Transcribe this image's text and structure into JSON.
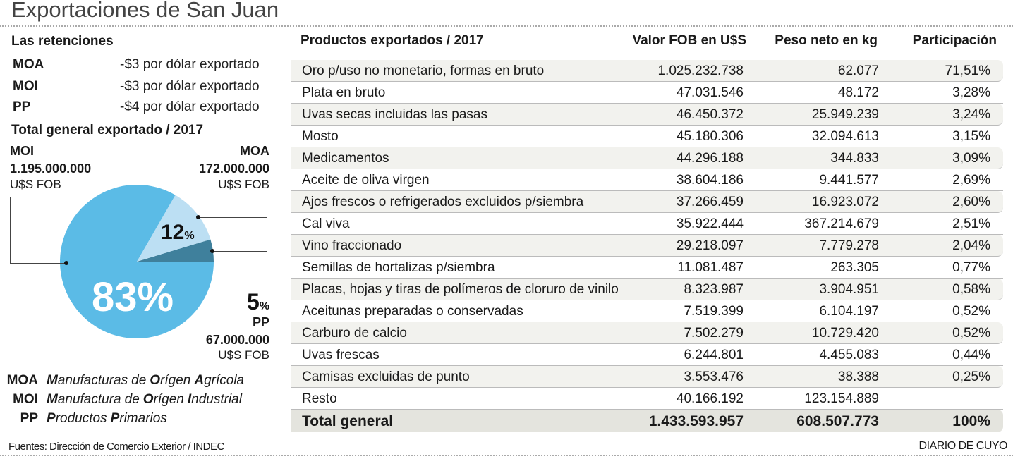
{
  "title": "Exportaciones de San Juan",
  "retenciones": {
    "heading": "Las retenciones",
    "items": [
      {
        "key": "MOA",
        "value": "-$3 por dólar exportado"
      },
      {
        "key": "MOI",
        "value": "-$3 por dólar exportado"
      },
      {
        "key": "PP",
        "value": "-$4 por dólar exportado"
      }
    ]
  },
  "chart_data": {
    "type": "pie",
    "title": "Total general exportado / 2017",
    "slices": [
      {
        "name": "MOI",
        "value": 1195000000,
        "percent": 83,
        "percent_label": "83%",
        "amount_label": "1.195.000.000",
        "unit": "U$S FOB",
        "color": "#5bbbe6"
      },
      {
        "name": "MOA",
        "value": 172000000,
        "percent": 12,
        "percent_label": "12",
        "amount_label": "172.000.000",
        "unit": "U$S FOB",
        "color": "#bcdff3"
      },
      {
        "name": "PP",
        "value": 67000000,
        "percent": 5,
        "percent_label": "5",
        "amount_label": "67.000.000",
        "unit": "U$S FOB",
        "color": "#3f809c"
      }
    ],
    "pct_sign": "%"
  },
  "legend": [
    {
      "key": "MOA",
      "words": [
        {
          "w": "Manufacturas",
          "cap": true
        },
        {
          "w": "de",
          "cap": false
        },
        {
          "w": "Orígen",
          "cap": true
        },
        {
          "w": "Agrícola",
          "cap": true
        }
      ]
    },
    {
      "key": "MOI",
      "words": [
        {
          "w": "Manufactura",
          "cap": true
        },
        {
          "w": "de",
          "cap": false
        },
        {
          "w": "Orígen",
          "cap": true
        },
        {
          "w": "Industrial",
          "cap": true
        }
      ]
    },
    {
      "key": "PP",
      "words": [
        {
          "w": "Productos",
          "cap": true
        },
        {
          "w": "Primarios",
          "cap": true
        }
      ]
    }
  ],
  "table": {
    "headers": [
      "Productos exportados / 2017",
      "Valor FOB en U$S",
      "Peso neto en kg",
      "Participación"
    ],
    "rows": [
      [
        "Oro p/uso no monetario, formas en bruto",
        "1.025.232.738",
        "62.077",
        "71,51%"
      ],
      [
        "Plata en bruto",
        "47.031.546",
        "48.172",
        "3,28%"
      ],
      [
        "Uvas secas incluidas las pasas",
        "46.450.372",
        "25.949.239",
        "3,24%"
      ],
      [
        "Mosto",
        "45.180.306",
        "32.094.613",
        "3,15%"
      ],
      [
        "Medicamentos",
        "44.296.188",
        "344.833",
        "3,09%"
      ],
      [
        "Aceite de oliva virgen",
        "38.604.186",
        "9.441.577",
        "2,69%"
      ],
      [
        "Ajos frescos o refrigerados excluidos p/siembra",
        "37.266.459",
        "16.923.072",
        "2,60%"
      ],
      [
        "Cal viva",
        "35.922.444",
        "367.214.679",
        "2,51%"
      ],
      [
        "Vino fraccionado",
        "29.218.097",
        "7.779.278",
        "2,04%"
      ],
      [
        "Semillas de hortalizas p/siembra",
        "11.081.487",
        "263.305",
        "0,77%"
      ],
      [
        "Placas, hojas y tiras de polímeros de cloruro de vinilo",
        "8.323.987",
        "3.904.951",
        "0,58%"
      ],
      [
        "Aceitunas preparadas o conservadas",
        "7.519.399",
        "6.104.197",
        "0,52%"
      ],
      [
        "Carburo de calcio",
        "7.502.279",
        "10.729.420",
        "0,52%"
      ],
      [
        "Uvas frescas",
        "6.244.801",
        "4.455.083",
        "0,44%"
      ],
      [
        "Camisas excluidas de punto",
        "3.553.476",
        "38.388",
        "0,25%"
      ],
      [
        "Resto",
        "40.166.192",
        "123.154.889",
        ""
      ]
    ],
    "total": [
      "Total general",
      "1.433.593.957",
      "608.507.773",
      "100%"
    ]
  },
  "footer": {
    "source": "Fuentes: Dirección de Comercio Exterior / INDEC",
    "brand": "DIARIO DE CUYO"
  }
}
